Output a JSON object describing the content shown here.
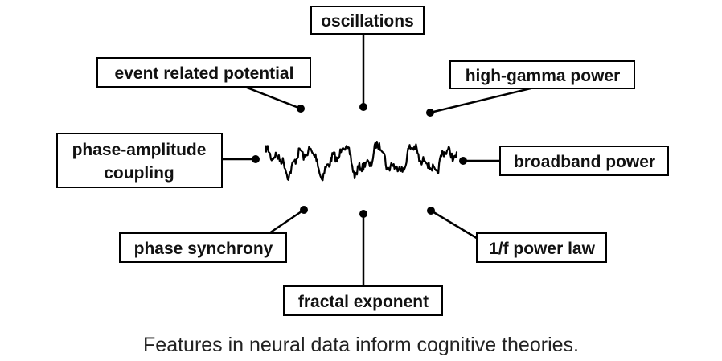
{
  "diagram": {
    "center_signal": "eeg-trace-icon",
    "labels": {
      "oscillations": "oscillations",
      "event_related_potential": "event related potential",
      "high_gamma_power": "high-gamma power",
      "phase_amplitude_coupling_line1": "phase-amplitude",
      "phase_amplitude_coupling_line2": "coupling",
      "broadband_power": "broadband power",
      "phase_synchrony": "phase synchrony",
      "one_over_f_power_law": "1/f power law",
      "fractal_exponent": "fractal exponent"
    },
    "caption": "Features in neural data inform cognitive theories.",
    "colors": {
      "stroke": "#000000",
      "background": "#ffffff"
    }
  }
}
